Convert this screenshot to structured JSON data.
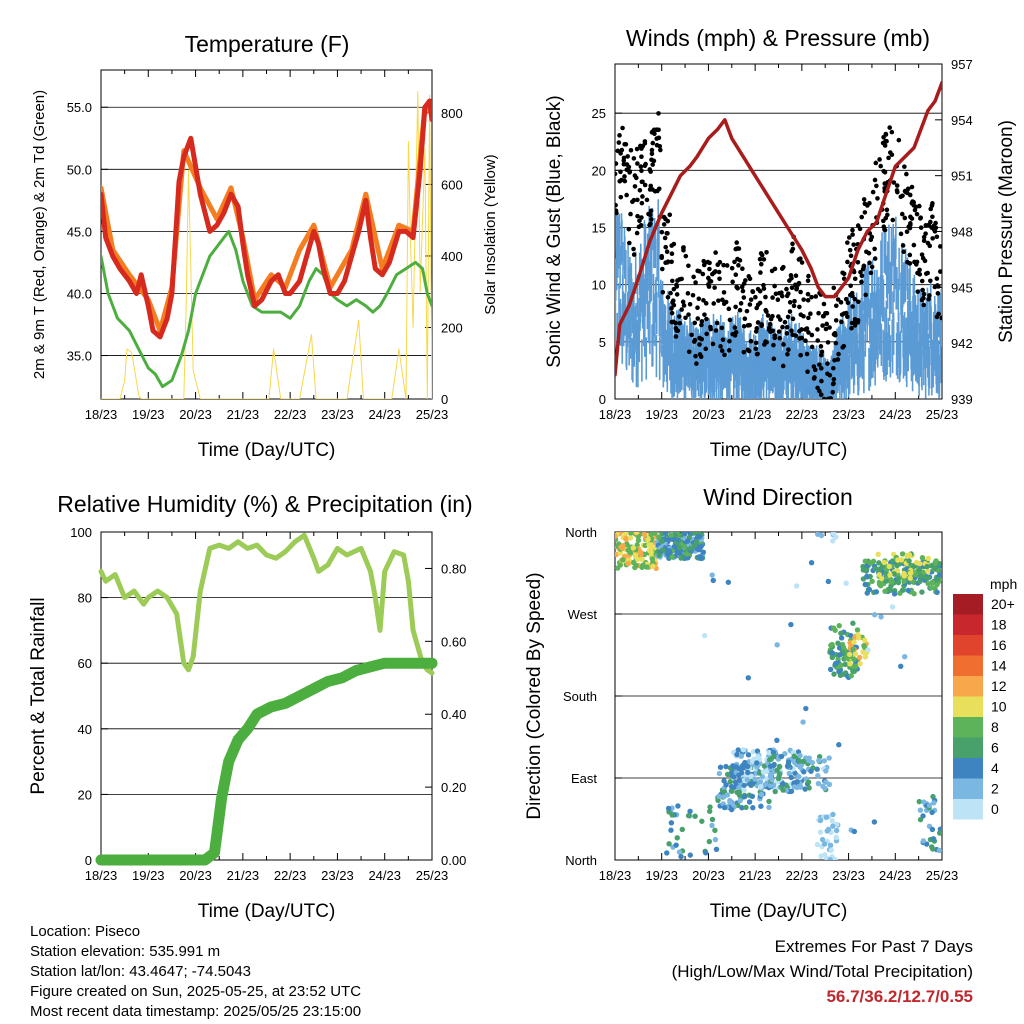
{
  "chart_data": [
    {
      "type": "line",
      "title": "Temperature (F)",
      "xlabel": "Time (Day/UTC)",
      "ylabel": "2m & 9m T (Red, Orange) & 2m Td (Green)",
      "y2label": "Solar Insolation (Yellow)",
      "x_ticks": [
        "18/23",
        "19/23",
        "20/23",
        "21/23",
        "22/23",
        "23/23",
        "24/23",
        "25/23"
      ],
      "ylim": [
        31.5,
        58
      ],
      "y_ticks": [
        "35.0",
        "40.0",
        "45.0",
        "50.0",
        "55.0"
      ],
      "y2lim": [
        0,
        920
      ],
      "y2_ticks": [
        "0",
        "200",
        "400",
        "600",
        "800"
      ],
      "series": [
        {
          "color": "#d62a1e",
          "x": [
            0,
            0.1,
            0.25,
            0.4,
            0.6,
            0.75,
            0.85,
            1.0,
            1.1,
            1.25,
            1.4,
            1.5,
            1.6,
            1.65,
            1.75,
            1.9,
            2.1,
            2.3,
            2.45,
            2.6,
            2.75,
            2.9,
            3.0,
            3.1,
            3.25,
            3.4,
            3.6,
            3.75,
            3.9,
            4.0,
            4.2,
            4.35,
            4.5,
            4.6,
            4.7,
            4.85,
            5.0,
            5.15,
            5.3,
            5.45,
            5.6,
            5.7,
            5.8,
            5.95,
            6.1,
            6.3,
            6.45,
            6.6,
            6.75,
            6.85,
            6.95,
            7.0
          ],
          "y": [
            48,
            44.5,
            43,
            42,
            41,
            40,
            41.5,
            39,
            37,
            36.5,
            38,
            40,
            46,
            49,
            51,
            52.5,
            48,
            45,
            45.5,
            46.5,
            48,
            47,
            44,
            41.5,
            39,
            39.5,
            41,
            41.5,
            40,
            40,
            41,
            43,
            45,
            44,
            42,
            40,
            40,
            41,
            43,
            45,
            47.5,
            44.5,
            42,
            41.5,
            42.5,
            45,
            45,
            44.5,
            50,
            55,
            55.5,
            54
          ]
        },
        {
          "color": "#f47d20",
          "x": [
            0,
            0.25,
            0.6,
            1.0,
            1.25,
            1.5,
            1.75,
            2.1,
            2.45,
            2.75,
            3.0,
            3.25,
            3.6,
            3.9,
            4.2,
            4.5,
            4.85,
            5.3,
            5.6,
            5.95,
            6.3,
            6.6,
            6.85,
            7.0
          ],
          "y": [
            48.5,
            43.5,
            41.5,
            39.5,
            37,
            40.5,
            51.5,
            48.5,
            46,
            48.5,
            44.5,
            39.5,
            41.5,
            40.5,
            43.5,
            45.5,
            40.5,
            43.5,
            48,
            42,
            45.5,
            45,
            55,
            54.5
          ]
        },
        {
          "color": "#4cae3e",
          "x": [
            0,
            0.15,
            0.35,
            0.6,
            0.8,
            1.0,
            1.15,
            1.3,
            1.5,
            1.7,
            1.85,
            2.0,
            2.15,
            2.3,
            2.5,
            2.7,
            2.85,
            3.0,
            3.2,
            3.4,
            3.6,
            3.8,
            4.0,
            4.2,
            4.4,
            4.55,
            4.7,
            4.85,
            5.0,
            5.2,
            5.4,
            5.6,
            5.75,
            5.9,
            6.05,
            6.25,
            6.45,
            6.65,
            6.8,
            6.9,
            7.0
          ],
          "y": [
            43,
            40,
            38,
            37,
            35.5,
            34,
            33.5,
            32.5,
            33,
            35,
            37,
            40,
            41.5,
            43,
            44,
            45,
            43.5,
            41,
            39,
            38.5,
            38.5,
            38.5,
            38,
            39,
            41,
            42,
            41.5,
            40,
            39.5,
            39,
            39.5,
            39,
            38.5,
            39,
            40,
            41.5,
            42,
            42.5,
            42,
            40,
            39
          ]
        },
        {
          "color": "#f7d84a",
          "x": [
            0,
            0.15,
            0.3,
            0.4,
            0.5,
            0.55,
            0.65,
            0.8,
            0.85,
            1.0,
            1.1,
            1.2,
            1.3,
            1.4,
            1.6,
            1.75,
            1.8,
            1.85,
            1.95,
            2.1,
            2.2,
            2.4,
            2.55,
            2.6,
            2.7,
            2.85,
            3.0,
            3.2,
            3.4,
            3.55,
            3.65,
            3.8,
            4.0,
            4.2,
            4.45,
            4.55,
            4.65,
            4.85,
            5.0,
            5.2,
            5.45,
            5.55,
            5.7,
            5.85,
            6.0,
            6.15,
            6.3,
            6.45,
            6.5,
            6.55,
            6.6,
            6.7,
            6.75,
            6.85,
            6.9,
            6.95,
            7.0
          ],
          "y": [
            0,
            0,
            0,
            0,
            50,
            140,
            130,
            10,
            0,
            0,
            0,
            0,
            0,
            0,
            0,
            0,
            250,
            640,
            80,
            0,
            0,
            0,
            0,
            0,
            0,
            0,
            0,
            0,
            0,
            0,
            140,
            0,
            0,
            0,
            180,
            0,
            0,
            0,
            0,
            0,
            220,
            0,
            0,
            0,
            0,
            0,
            140,
            0,
            720,
            420,
            200,
            860,
            300,
            700,
            0,
            850,
            0
          ]
        }
      ]
    },
    {
      "type": "line",
      "title": "Winds (mph) & Pressure (mb)",
      "xlabel": "Time (Day/UTC)",
      "ylabel": "Sonic Wind & Gust (Blue, Black)",
      "y2label": "Station Pressure (Maroon)",
      "x_ticks": [
        "18/23",
        "19/23",
        "20/23",
        "21/23",
        "22/23",
        "23/23",
        "24/23",
        "25/23"
      ],
      "ylim": [
        0,
        29.3
      ],
      "y_ticks": [
        "0",
        "5",
        "10",
        "15",
        "20",
        "25"
      ],
      "y2lim": [
        939,
        957
      ],
      "y2_ticks": [
        "939",
        "942",
        "945",
        "948",
        "951",
        "954",
        "957"
      ],
      "series": [
        {
          "color": "#a81c1c",
          "x": [
            0,
            0.1,
            0.3,
            0.5,
            0.75,
            1.0,
            1.2,
            1.4,
            1.6,
            1.75,
            2.0,
            2.2,
            2.35,
            2.5,
            2.75,
            3.0,
            3.25,
            3.5,
            3.75,
            4.0,
            4.2,
            4.35,
            4.5,
            4.7,
            4.85,
            5.0,
            5.2,
            5.4,
            5.6,
            5.8,
            6.0,
            6.2,
            6.4,
            6.55,
            6.7,
            6.85,
            7.0
          ],
          "y": [
            940.3,
            943,
            944,
            945.5,
            947.5,
            949,
            950,
            951,
            951.5,
            952,
            953,
            953.5,
            954,
            953,
            952,
            951,
            950,
            949,
            948,
            947,
            946,
            945,
            944.5,
            944.5,
            945,
            945.5,
            947,
            948,
            948.5,
            950,
            951.5,
            952,
            952.5,
            953.5,
            954.5,
            955,
            956
          ]
        },
        {
          "color": "#000000",
          "x": [
            0,
            0.1,
            0.25,
            0.4,
            0.6,
            0.8,
            0.95,
            1.0,
            1.15,
            1.35,
            1.55,
            1.75,
            2.0,
            2.2,
            2.4,
            2.6,
            2.8,
            3.0,
            3.2,
            3.4,
            3.6,
            3.8,
            4.0,
            4.2,
            4.4,
            4.6,
            4.75,
            4.9,
            5.0,
            5.2,
            5.4,
            5.6,
            5.8,
            6.0,
            6.2,
            6.4,
            6.6,
            6.8,
            7.0
          ],
          "y": [
            20,
            22,
            18,
            17,
            19,
            20,
            22,
            14,
            12,
            9,
            9,
            7,
            8,
            9,
            8,
            10,
            7,
            7,
            9,
            8,
            7,
            10,
            8,
            6,
            5,
            3,
            7,
            9,
            10,
            11,
            14,
            17,
            19,
            20,
            17,
            14,
            12,
            13,
            10
          ]
        },
        {
          "color": "#5b9bd5",
          "x": [
            0,
            0.1,
            0.25,
            0.4,
            0.6,
            0.8,
            0.95,
            1.0,
            1.15,
            1.35,
            1.55,
            1.75,
            2.0,
            2.2,
            2.4,
            2.6,
            2.8,
            3.0,
            3.2,
            3.4,
            3.6,
            3.8,
            4.0,
            4.2,
            4.4,
            4.6,
            4.75,
            4.9,
            5.0,
            5.2,
            5.4,
            5.6,
            5.8,
            6.0,
            6.2,
            6.4,
            6.6,
            6.8,
            7.0
          ],
          "y": [
            9,
            11,
            8,
            7,
            9,
            10,
            10,
            6,
            5,
            4,
            4,
            3,
            4,
            4,
            3,
            4,
            3,
            3,
            4,
            3,
            3,
            4,
            3,
            2,
            2,
            1,
            3,
            4,
            5,
            5,
            7,
            8,
            9,
            10,
            8,
            6,
            5,
            6,
            5
          ]
        }
      ]
    },
    {
      "type": "line",
      "title": "Relative Humidity (%) & Precipitation (in)",
      "xlabel": "Time (Day/UTC)",
      "ylabel": "Percent & Total Rainfall",
      "x_ticks": [
        "18/23",
        "19/23",
        "20/23",
        "21/23",
        "22/23",
        "23/23",
        "24/23",
        "25/23"
      ],
      "ylim": [
        0,
        100
      ],
      "y_ticks": [
        "0",
        "20",
        "40",
        "60",
        "80",
        "100"
      ],
      "y2lim": [
        0,
        0.9
      ],
      "y2_ticks": [
        "0.00",
        "0.20",
        "0.40",
        "0.60",
        "0.80"
      ],
      "series": [
        {
          "color": "#9ccc57",
          "x": [
            0,
            0.1,
            0.3,
            0.5,
            0.7,
            0.9,
            1.0,
            1.2,
            1.4,
            1.6,
            1.75,
            1.85,
            1.95,
            2.1,
            2.3,
            2.5,
            2.7,
            2.9,
            3.1,
            3.3,
            3.5,
            3.7,
            3.9,
            4.1,
            4.3,
            4.5,
            4.6,
            4.8,
            5.0,
            5.2,
            5.5,
            5.7,
            5.8,
            5.9,
            6.0,
            6.2,
            6.4,
            6.5,
            6.6,
            6.7,
            6.8,
            6.9,
            7.0
          ],
          "y": [
            88,
            85,
            87,
            80,
            82,
            78,
            80,
            82,
            80,
            75,
            60,
            58,
            62,
            82,
            95,
            96,
            95,
            97,
            95,
            96,
            93,
            92,
            94,
            97,
            99,
            92,
            88,
            90,
            95,
            93,
            95,
            88,
            80,
            70,
            88,
            94,
            93,
            85,
            70,
            65,
            60,
            58,
            57
          ]
        },
        {
          "color": "#4cae3e",
          "x": [
            0,
            0.5,
            1.0,
            1.5,
            2.0,
            2.2,
            2.4,
            2.55,
            2.7,
            2.9,
            3.1,
            3.3,
            3.6,
            3.9,
            4.2,
            4.5,
            4.8,
            5.1,
            5.4,
            5.7,
            6.0,
            6.3,
            6.6,
            7.0
          ],
          "y": [
            0,
            0,
            0,
            0,
            0,
            0,
            0.02,
            0.17,
            0.27,
            0.33,
            0.36,
            0.4,
            0.42,
            0.43,
            0.45,
            0.47,
            0.49,
            0.5,
            0.52,
            0.53,
            0.54,
            0.54,
            0.54,
            0.54
          ]
        }
      ]
    },
    {
      "type": "scatter",
      "title": "Wind Direction",
      "xlabel": "Time (Day/UTC)",
      "ylabel": "Direction (Colored By Speed)",
      "x_ticks": [
        "18/23",
        "19/23",
        "20/23",
        "21/23",
        "22/23",
        "23/23",
        "24/23",
        "25/23"
      ],
      "y_ticks": [
        "North",
        "East",
        "South",
        "West",
        "North"
      ],
      "ylim": [
        0,
        360
      ],
      "legend": {
        "title": "mph",
        "labels": [
          "20+",
          "18",
          "16",
          "14",
          "12",
          "10",
          "8",
          "6",
          "4",
          "2",
          "0"
        ],
        "colors": [
          "#a51c24",
          "#c8282d",
          "#e0442c",
          "#f06e30",
          "#f8a84a",
          "#e8df5a",
          "#5db35a",
          "#48a06a",
          "#3e84c0",
          "#7ab8e2",
          "#bde4f6"
        ],
        "placement": "right"
      }
    }
  ],
  "info": {
    "location": "Location: Piseco",
    "elevation": "Station elevation: 535.991 m",
    "latlon": "Station lat/lon: 43.4647; -74.5043",
    "created": "Figure created on Sun, 2025-05-25, at 23:52 UTC",
    "timestamp": "Most recent data timestamp: 2025/05/25 23:15:00"
  },
  "extremes": {
    "line1": "Extremes For Past 7 Days",
    "line2": "(High/Low/Max Wind/Total Precipitation)",
    "values": "56.7/36.2/12.7/0.55"
  }
}
